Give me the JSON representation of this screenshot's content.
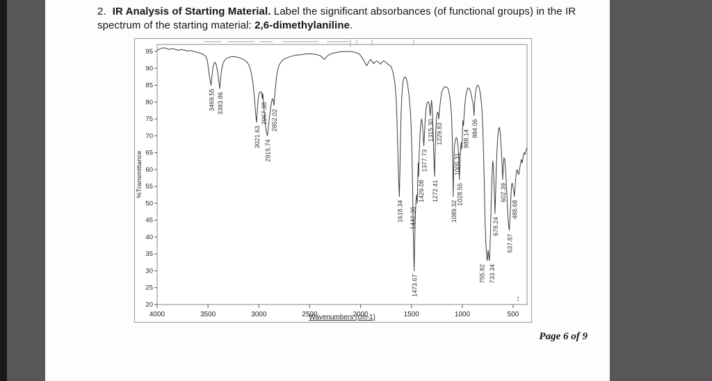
{
  "question": {
    "number": "2.",
    "title_bold": "IR Analysis of Starting Material.",
    "body": " Label the significant absorbances (of functional groups) in the IR",
    "line2": "spectrum of the starting material: ",
    "line2_bold": "2,6-dimethylaniline",
    "line2_end": "."
  },
  "footer": {
    "text": "Page 6 of 9"
  },
  "colors": {
    "curve": "#3a3a3a",
    "axis": "#555555",
    "frame": "#8a8a8a",
    "label_text": "#333333"
  },
  "chart_data": {
    "type": "line",
    "title": "",
    "xlabel": "Wavenumbers (cm-1)",
    "ylabel": "%Transmittance",
    "x_ticks": [
      4000,
      3500,
      3000,
      2500,
      2000,
      1500,
      1000,
      500
    ],
    "y_ticks": [
      95,
      90,
      85,
      80,
      75,
      70,
      65,
      60,
      55,
      50,
      45,
      40,
      35,
      30,
      25,
      20
    ],
    "ylim": [
      20,
      97
    ],
    "xlim": [
      4000,
      364
    ],
    "legend": "none",
    "grid": "off",
    "peaks": [
      {
        "label": "3469.55",
        "wavenumber": 3469.55,
        "transmittance": 85,
        "dx": 0
      },
      {
        "label": "3383.86",
        "wavenumber": 3383.86,
        "transmittance": 84,
        "dx": 0
      },
      {
        "label": "3021.63",
        "wavenumber": 3021.63,
        "transmittance": 74,
        "dx": 0
      },
      {
        "label": "2967.38",
        "wavenumber": 2967.38,
        "transmittance": 81,
        "dx": 2
      },
      {
        "label": "2915.74",
        "wavenumber": 2915.74,
        "transmittance": 70,
        "dx": 0
      },
      {
        "label": "2852.02",
        "wavenumber": 2852.02,
        "transmittance": 79,
        "dx": 0
      },
      {
        "label": "1618.34",
        "wavenumber": 1618.34,
        "transmittance": 52,
        "dx": 0
      },
      {
        "label": "1473.67",
        "wavenumber": 1473.67,
        "transmittance": 30,
        "dx": 0
      },
      {
        "label": "1442.36",
        "wavenumber": 1442.36,
        "transmittance": 50,
        "dx": -7
      },
      {
        "label": "1429.08",
        "wavenumber": 1429.08,
        "transmittance": 58,
        "dx": 3
      },
      {
        "label": "1377.73",
        "wavenumber": 1377.73,
        "transmittance": 67,
        "dx": 0
      },
      {
        "label": "1315.30",
        "wavenumber": 1315.3,
        "transmittance": 76,
        "dx": 0
      },
      {
        "label": "1272.41",
        "wavenumber": 1272.41,
        "transmittance": 58,
        "dx": 0
      },
      {
        "label": "1229.83",
        "wavenumber": 1229.83,
        "transmittance": 75,
        "dx": 0
      },
      {
        "label": "1089.32",
        "wavenumber": 1089.32,
        "transmittance": 52,
        "dx": 0
      },
      {
        "label": "1028.55",
        "wavenumber": 1028.55,
        "transmittance": 57,
        "dx": 0
      },
      {
        "label": "1005.31",
        "wavenumber": 1005.31,
        "transmittance": 66,
        "dx": -7
      },
      {
        "label": "988.14",
        "wavenumber": 988.14,
        "transmittance": 73,
        "dx": 3
      },
      {
        "label": "884.06",
        "wavenumber": 884.06,
        "transmittance": 76,
        "dx": 0
      },
      {
        "label": "755.82",
        "wavenumber": 755.82,
        "transmittance": 33,
        "dx": -8
      },
      {
        "label": "733.34",
        "wavenumber": 733.34,
        "transmittance": 33,
        "dx": 3
      },
      {
        "label": "678.24",
        "wavenumber": 678.24,
        "transmittance": 47,
        "dx": 0
      },
      {
        "label": "602.39",
        "wavenumber": 602.39,
        "transmittance": 57,
        "dx": 0
      },
      {
        "label": "537.87",
        "wavenumber": 537.87,
        "transmittance": 42,
        "dx": 0
      },
      {
        "label": "488.68",
        "wavenumber": 488.68,
        "transmittance": 52,
        "dx": 0
      }
    ],
    "curve": [
      [
        4000,
        95.3
      ],
      [
        3970,
        95.8
      ],
      [
        3940,
        96.1
      ],
      [
        3910,
        95.9
      ],
      [
        3880,
        95.6
      ],
      [
        3850,
        95.9
      ],
      [
        3820,
        95.6
      ],
      [
        3790,
        95.3
      ],
      [
        3760,
        95.6
      ],
      [
        3730,
        95.4
      ],
      [
        3700,
        95.1
      ],
      [
        3670,
        95.3
      ],
      [
        3640,
        95.0
      ],
      [
        3610,
        94.8
      ],
      [
        3580,
        94.5
      ],
      [
        3550,
        94.2
      ],
      [
        3520,
        93.5
      ],
      [
        3505,
        92.0
      ],
      [
        3492,
        89.0
      ],
      [
        3480,
        86.5
      ],
      [
        3469.55,
        85.0
      ],
      [
        3462,
        87.5
      ],
      [
        3450,
        90.5
      ],
      [
        3440,
        91.5
      ],
      [
        3430,
        91.8
      ],
      [
        3418,
        91.0
      ],
      [
        3405,
        89.0
      ],
      [
        3395,
        86.5
      ],
      [
        3383.86,
        84.0
      ],
      [
        3376,
        87.0
      ],
      [
        3366,
        89.5
      ],
      [
        3352,
        91.5
      ],
      [
        3335,
        92.5
      ],
      [
        3315,
        93.0
      ],
      [
        3290,
        93.3
      ],
      [
        3260,
        93.5
      ],
      [
        3230,
        93.4
      ],
      [
        3200,
        93.2
      ],
      [
        3170,
        92.9
      ],
      [
        3140,
        92.4
      ],
      [
        3115,
        91.8
      ],
      [
        3090,
        90.5
      ],
      [
        3070,
        88.0
      ],
      [
        3055,
        85.0
      ],
      [
        3040,
        80.0
      ],
      [
        3030,
        76.0
      ],
      [
        3021.63,
        74.0
      ],
      [
        3014,
        78.0
      ],
      [
        3006,
        81.0
      ],
      [
        2998,
        82.5
      ],
      [
        2990,
        83.0
      ],
      [
        2980,
        83.0
      ],
      [
        2973,
        83.0
      ],
      [
        2967.38,
        81.0
      ],
      [
        2961,
        82.5
      ],
      [
        2952,
        79.0
      ],
      [
        2940,
        74.0
      ],
      [
        2928,
        71.5
      ],
      [
        2920,
        70.5
      ],
      [
        2915.74,
        70.0
      ],
      [
        2908,
        72.0
      ],
      [
        2898,
        75.0
      ],
      [
        2888,
        77.5
      ],
      [
        2878,
        79.5
      ],
      [
        2868,
        81.0
      ],
      [
        2858,
        80.5
      ],
      [
        2852.02,
        79.0
      ],
      [
        2846,
        81.0
      ],
      [
        2838,
        84.0
      ],
      [
        2828,
        87.0
      ],
      [
        2815,
        89.5
      ],
      [
        2800,
        91.0
      ],
      [
        2780,
        92.0
      ],
      [
        2750,
        92.8
      ],
      [
        2700,
        93.4
      ],
      [
        2650,
        93.8
      ],
      [
        2600,
        94.0
      ],
      [
        2550,
        94.2
      ],
      [
        2500,
        94.3
      ],
      [
        2450,
        94.2
      ],
      [
        2400,
        93.8
      ],
      [
        2375,
        93.2
      ],
      [
        2358,
        92.6
      ],
      [
        2345,
        93.0
      ],
      [
        2330,
        93.6
      ],
      [
        2310,
        94.0
      ],
      [
        2280,
        94.4
      ],
      [
        2240,
        94.7
      ],
      [
        2200,
        94.9
      ],
      [
        2160,
        95.0
      ],
      [
        2120,
        95.0
      ],
      [
        2080,
        94.9
      ],
      [
        2040,
        94.6
      ],
      [
        2010,
        94.2
      ],
      [
        1990,
        93.4
      ],
      [
        1970,
        92.4
      ],
      [
        1950,
        91.2
      ],
      [
        1938,
        90.8
      ],
      [
        1925,
        91.6
      ],
      [
        1912,
        92.2
      ],
      [
        1900,
        92.6
      ],
      [
        1885,
        92.0
      ],
      [
        1872,
        91.4
      ],
      [
        1860,
        91.8
      ],
      [
        1845,
        92.2
      ],
      [
        1830,
        92.0
      ],
      [
        1815,
        91.6
      ],
      [
        1802,
        91.2
      ],
      [
        1790,
        91.8
      ],
      [
        1775,
        92.2
      ],
      [
        1760,
        92.0
      ],
      [
        1745,
        91.6
      ],
      [
        1730,
        91.2
      ],
      [
        1715,
        90.9
      ],
      [
        1700,
        90.5
      ],
      [
        1688,
        89.5
      ],
      [
        1675,
        88.0
      ],
      [
        1662,
        85.5
      ],
      [
        1650,
        81.0
      ],
      [
        1642,
        75.0
      ],
      [
        1634,
        66.0
      ],
      [
        1626,
        57.0
      ],
      [
        1618.34,
        52.0
      ],
      [
        1613,
        60.0
      ],
      [
        1607,
        70.0
      ],
      [
        1601,
        77.0
      ],
      [
        1594,
        82.0
      ],
      [
        1587,
        85.0
      ],
      [
        1580,
        86.5
      ],
      [
        1572,
        87.2
      ],
      [
        1562,
        87.5
      ],
      [
        1552,
        87.0
      ],
      [
        1542,
        86.0
      ],
      [
        1532,
        84.0
      ],
      [
        1522,
        81.5
      ],
      [
        1512,
        78.0
      ],
      [
        1503,
        73.0
      ],
      [
        1496,
        66.0
      ],
      [
        1489,
        56.0
      ],
      [
        1482,
        42.0
      ],
      [
        1473.67,
        30.0
      ],
      [
        1468,
        38.0
      ],
      [
        1462,
        46.0
      ],
      [
        1455,
        51.0
      ],
      [
        1448,
        52.5
      ],
      [
        1442.36,
        50.0
      ],
      [
        1437,
        58.0
      ],
      [
        1433,
        62.0
      ],
      [
        1429.08,
        58.0
      ],
      [
        1424,
        64.0
      ],
      [
        1418,
        69.0
      ],
      [
        1410,
        73.0
      ],
      [
        1400,
        75.0
      ],
      [
        1392,
        73.5
      ],
      [
        1385,
        70.5
      ],
      [
        1377.73,
        67.0
      ],
      [
        1371,
        71.0
      ],
      [
        1364,
        75.0
      ],
      [
        1356,
        78.0
      ],
      [
        1348,
        79.5
      ],
      [
        1340,
        80.0
      ],
      [
        1330,
        80.0
      ],
      [
        1322,
        78.5
      ],
      [
        1315.3,
        76.0
      ],
      [
        1309,
        78.5
      ],
      [
        1302,
        80.5
      ],
      [
        1295,
        78.0
      ],
      [
        1287,
        71.0
      ],
      [
        1279,
        63.0
      ],
      [
        1272.41,
        58.0
      ],
      [
        1266,
        66.0
      ],
      [
        1258,
        73.0
      ],
      [
        1250,
        76.5
      ],
      [
        1242,
        77.0
      ],
      [
        1236,
        76.5
      ],
      [
        1229.83,
        75.0
      ],
      [
        1223,
        78.0
      ],
      [
        1214,
        80.5
      ],
      [
        1202,
        83.0
      ],
      [
        1188,
        84.0
      ],
      [
        1172,
        84.5
      ],
      [
        1156,
        84.5
      ],
      [
        1140,
        84.0
      ],
      [
        1128,
        82.5
      ],
      [
        1116,
        80.0
      ],
      [
        1106,
        76.0
      ],
      [
        1098,
        69.0
      ],
      [
        1093,
        60.0
      ],
      [
        1089.32,
        52.0
      ],
      [
        1084,
        61.0
      ],
      [
        1078,
        66.5
      ],
      [
        1070,
        68.5
      ],
      [
        1060,
        69.5
      ],
      [
        1050,
        69.0
      ],
      [
        1042,
        67.0
      ],
      [
        1035,
        63.5
      ],
      [
        1028.55,
        57.0
      ],
      [
        1022,
        62.0
      ],
      [
        1016,
        66.5
      ],
      [
        1010,
        68.0
      ],
      [
        1005.31,
        66.0
      ],
      [
        1000,
        70.0
      ],
      [
        994,
        74.5
      ],
      [
        988.14,
        73.0
      ],
      [
        982,
        76.0
      ],
      [
        975,
        79.0
      ],
      [
        966,
        81.5
      ],
      [
        957,
        83.0
      ],
      [
        948,
        84.0
      ],
      [
        938,
        84.2
      ],
      [
        928,
        83.8
      ],
      [
        920,
        83.2
      ],
      [
        915,
        82.5
      ],
      [
        905,
        81.0
      ],
      [
        897,
        80.0
      ],
      [
        890,
        78.5
      ],
      [
        884.06,
        76.0
      ],
      [
        878,
        80.0
      ],
      [
        871,
        82.5
      ],
      [
        860,
        84.5
      ],
      [
        850,
        85.0
      ],
      [
        840,
        84.8
      ],
      [
        830,
        83.8
      ],
      [
        820,
        82.0
      ],
      [
        810,
        79.0
      ],
      [
        800,
        74.0
      ],
      [
        792,
        66.0
      ],
      [
        784,
        56.0
      ],
      [
        776,
        45.0
      ],
      [
        768,
        38.0
      ],
      [
        760,
        34.5
      ],
      [
        755.82,
        33.0
      ],
      [
        751,
        34.0
      ],
      [
        746,
        36.0
      ],
      [
        741,
        35.0
      ],
      [
        736,
        33.5
      ],
      [
        733.34,
        33.0
      ],
      [
        728,
        36.0
      ],
      [
        722,
        42.0
      ],
      [
        715,
        51.0
      ],
      [
        708,
        58.0
      ],
      [
        701,
        62.5
      ],
      [
        694,
        61.0
      ],
      [
        687,
        55.0
      ],
      [
        681,
        50.0
      ],
      [
        678.24,
        47.0
      ],
      [
        673,
        52.0
      ],
      [
        667,
        59.0
      ],
      [
        660,
        65.0
      ],
      [
        652,
        69.5
      ],
      [
        643,
        72.0
      ],
      [
        634,
        72.5
      ],
      [
        625,
        70.5
      ],
      [
        615,
        65.0
      ],
      [
        608,
        61.0
      ],
      [
        602.39,
        57.0
      ],
      [
        597,
        61.0
      ],
      [
        590,
        63.5
      ],
      [
        583,
        63.0
      ],
      [
        576,
        60.5
      ],
      [
        569,
        57.0
      ],
      [
        561,
        52.0
      ],
      [
        553,
        47.0
      ],
      [
        546,
        44.0
      ],
      [
        540,
        42.5
      ],
      [
        537.87,
        42.0
      ],
      [
        533,
        44.5
      ],
      [
        527,
        48.5
      ],
      [
        521,
        52.5
      ],
      [
        515,
        55.5
      ],
      [
        509,
        56.0
      ],
      [
        503,
        55.0
      ],
      [
        498,
        54.5
      ],
      [
        493,
        53.5
      ],
      [
        488.68,
        52.0
      ],
      [
        483,
        54.0
      ],
      [
        476,
        57.0
      ],
      [
        469,
        59.0
      ],
      [
        461,
        60.0
      ],
      [
        453,
        59.0
      ],
      [
        445,
        58.5
      ],
      [
        437,
        60.0
      ],
      [
        429,
        61.5
      ],
      [
        420,
        63.0
      ],
      [
        411,
        62.0
      ],
      [
        402,
        63.5
      ],
      [
        393,
        65.0
      ],
      [
        384,
        64.5
      ],
      [
        375,
        65.5
      ],
      [
        364,
        66.5
      ]
    ]
  }
}
